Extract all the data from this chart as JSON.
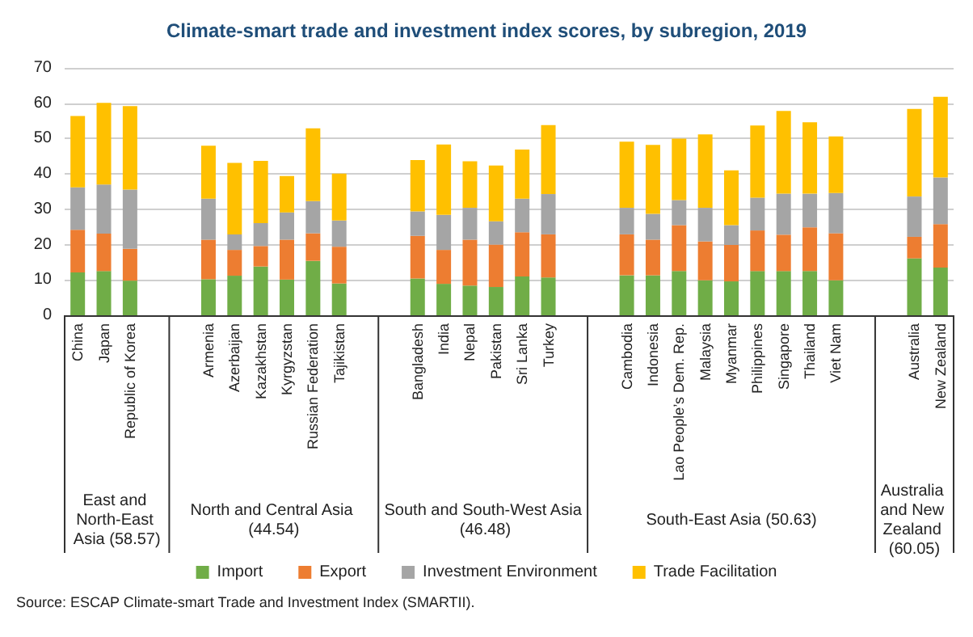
{
  "chart_data": {
    "type": "bar",
    "stacked": true,
    "title": "Climate-smart trade and investment index scores, by subregion, 2019",
    "categories": [
      "China",
      "Japan",
      "Republic of Korea",
      null,
      null,
      "Armenia",
      "Azerbaijan",
      "Kazakhstan",
      "Kyrgyzstan",
      "Russian Federation",
      "Tajikistan",
      null,
      null,
      "Bangladesh",
      "India",
      "Nepal",
      "Pakistan",
      "Sri Lanka",
      "Turkey",
      null,
      null,
      "Cambodia",
      "Indonesia",
      "Lao People’s Dem. Rep.",
      "Malaysia",
      "Myanmar",
      "Philippines",
      "Singapore",
      "Thailand",
      "Viet Nam",
      null,
      null,
      "Australia",
      "New Zealand"
    ],
    "series": [
      {
        "name": "Import",
        "color": "#70ad47",
        "values": [
          12.1,
          12.5,
          9.8,
          null,
          null,
          10.2,
          11.2,
          13.8,
          10.1,
          15.4,
          9.0,
          null,
          null,
          10.4,
          8.9,
          8.4,
          8.0,
          11.0,
          10.7,
          null,
          null,
          11.3,
          11.3,
          12.5,
          9.9,
          9.6,
          12.5,
          12.5,
          12.5,
          9.9,
          null,
          null,
          16.1,
          13.5
        ]
      },
      {
        "name": "Export",
        "color": "#ed7d31",
        "values": [
          12.1,
          10.6,
          9.0,
          null,
          null,
          11.2,
          7.3,
          5.8,
          11.3,
          7.8,
          10.4,
          null,
          null,
          12.1,
          9.6,
          13.0,
          12.0,
          12.5,
          12.2,
          null,
          null,
          11.6,
          10.1,
          13.0,
          11.0,
          10.3,
          11.5,
          10.3,
          12.4,
          13.3,
          null,
          null,
          6.1,
          12.3
        ]
      },
      {
        "name": "Investment Environment",
        "color": "#a5a5a5",
        "values": [
          12.0,
          13.9,
          16.8,
          null,
          null,
          11.6,
          4.4,
          6.5,
          7.7,
          9.1,
          7.4,
          null,
          null,
          6.9,
          9.9,
          9.0,
          6.6,
          9.5,
          11.4,
          null,
          null,
          7.5,
          7.3,
          7.1,
          9.5,
          5.6,
          9.3,
          11.6,
          9.5,
          11.4,
          null,
          null,
          11.4,
          13.2
        ]
      },
      {
        "name": "Trade Facilitation",
        "color": "#ffc000",
        "values": [
          20.2,
          23.1,
          23.6,
          null,
          null,
          15.0,
          20.2,
          17.6,
          10.3,
          20.6,
          13.3,
          null,
          null,
          14.5,
          19.9,
          13.2,
          15.8,
          13.9,
          19.5,
          null,
          null,
          18.7,
          19.5,
          17.4,
          20.8,
          15.5,
          20.4,
          23.4,
          20.2,
          16.0,
          null,
          null,
          24.8,
          22.8
        ]
      }
    ],
    "ylim": [
      0,
      70
    ],
    "yticks": [
      0,
      10,
      20,
      30,
      40,
      50,
      60,
      70
    ],
    "grid": "y",
    "legend": "bottom",
    "annotations": [
      "East and North-East Asia (58.57)",
      "North and Central Asia (44.54)",
      "South and South-West Asia (46.48)",
      "South-East Asia (50.63)",
      "Australia and New Zealand (60.05)",
      "Source: ESCAP Climate-smart Trade and Investment Index (SMARTII)."
    ]
  }
}
